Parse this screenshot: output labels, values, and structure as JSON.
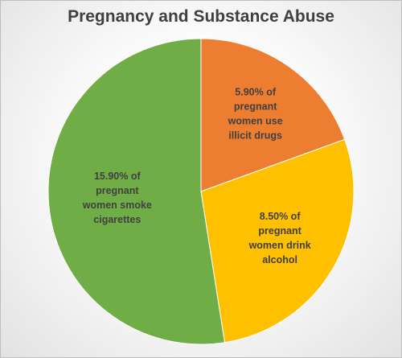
{
  "chart_data": {
    "type": "pie",
    "title": "Pregnancy and Substance Abuse",
    "categories": [
      "illicit drugs",
      "alcohol",
      "cigarettes"
    ],
    "values": [
      5.9,
      8.5,
      15.9
    ],
    "colors": [
      "#ed7d31",
      "#ffc000",
      "#70ad47"
    ],
    "start_angle_deg": 0,
    "direction": "clockwise",
    "data_labels": [
      [
        "5.90% of",
        "pregnant",
        "women use",
        "illicit drugs"
      ],
      [
        "8.50% of",
        "pregnant",
        "women drink",
        "alcohol"
      ],
      [
        "15.90% of",
        "pregnant",
        "women smoke",
        "cigarettes"
      ]
    ],
    "legend": "none"
  }
}
